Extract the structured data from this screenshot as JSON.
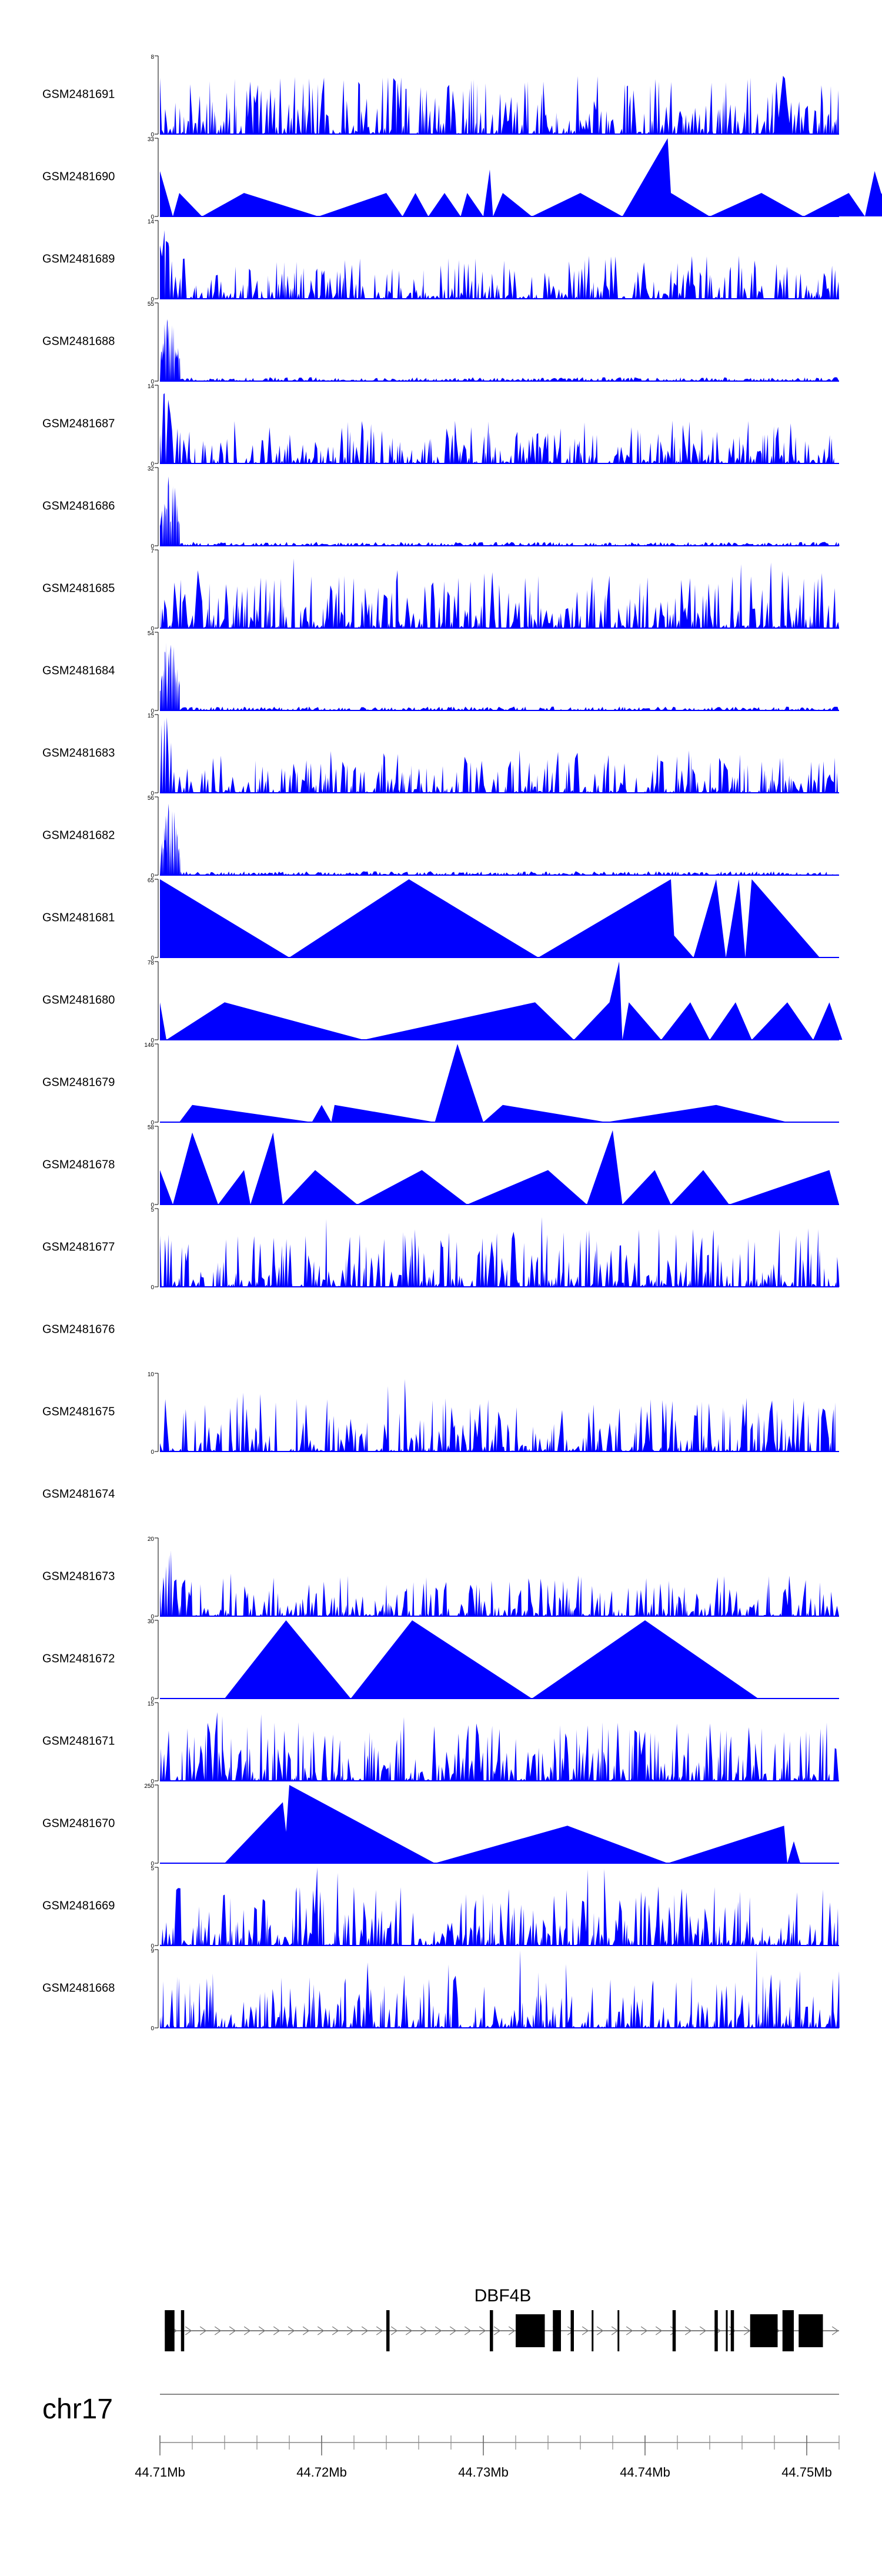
{
  "chart_data": {
    "type": "area",
    "description_source": "genome browser coverage tracks",
    "color": "#0000ff",
    "tracks": [
      {
        "name": "GSM2481691",
        "ymax": "8",
        "ymin": "0",
        "profile": "dense"
      },
      {
        "name": "GSM2481690",
        "ymax": "33",
        "ymin": "0",
        "profile": "sparse",
        "peaks": [
          [
            44.71,
            0.58
          ],
          [
            44.7108,
            0.0
          ],
          [
            44.7112,
            0.3
          ],
          [
            44.7126,
            0.0
          ],
          [
            44.7152,
            0.3
          ],
          [
            44.7198,
            0.0
          ],
          [
            44.724,
            0.3
          ],
          [
            44.725,
            0.0
          ],
          [
            44.7258,
            0.3
          ],
          [
            44.7266,
            0.0
          ],
          [
            44.7276,
            0.3
          ],
          [
            44.7286,
            0.0
          ],
          [
            44.729,
            0.3
          ],
          [
            44.73,
            0.0
          ],
          [
            44.7304,
            0.6
          ],
          [
            44.7306,
            0.0
          ],
          [
            44.7312,
            0.3
          ],
          [
            44.733,
            0.0
          ],
          [
            44.736,
            0.3
          ],
          [
            44.7386,
            0.0
          ],
          [
            44.7414,
            1.0
          ],
          [
            44.7416,
            0.3
          ],
          [
            44.744,
            0.0
          ],
          [
            44.7472,
            0.3
          ],
          [
            44.7498,
            0.0
          ],
          [
            44.7526,
            0.3
          ],
          [
            44.7536,
            0.0
          ],
          [
            44.7542,
            0.58
          ],
          [
            44.7546,
            0.3
          ],
          [
            44.7556,
            0.0
          ],
          [
            44.7562,
            0.58
          ],
          [
            44.7568,
            0.0
          ]
        ]
      },
      {
        "name": "GSM2481689",
        "ymax": "14",
        "ymin": "0",
        "profile": "dense-early"
      },
      {
        "name": "GSM2481688",
        "ymax": "55",
        "ymin": "0",
        "profile": "early-spike"
      },
      {
        "name": "GSM2481687",
        "ymax": "14",
        "ymin": "0",
        "profile": "dense-early"
      },
      {
        "name": "GSM2481686",
        "ymax": "32",
        "ymin": "0",
        "profile": "early-spike"
      },
      {
        "name": "GSM2481685",
        "ymax": "7",
        "ymin": "0",
        "profile": "dense"
      },
      {
        "name": "GSM2481684",
        "ymax": "54",
        "ymin": "0",
        "profile": "early-spike"
      },
      {
        "name": "GSM2481683",
        "ymax": "15",
        "ymin": "0",
        "profile": "dense-early"
      },
      {
        "name": "GSM2481682",
        "ymax": "56",
        "ymin": "0",
        "profile": "early-spike"
      },
      {
        "name": "GSM2481681",
        "ymax": "65",
        "ymin": "0",
        "profile": "sparse",
        "peaks": [
          [
            44.71,
            1.0
          ],
          [
            44.718,
            0.0
          ],
          [
            44.7254,
            1.0
          ],
          [
            44.7334,
            0.0
          ],
          [
            44.7416,
            1.0
          ],
          [
            44.7418,
            0.28
          ],
          [
            44.743,
            0.0
          ],
          [
            44.7444,
            1.0
          ],
          [
            44.745,
            0.0
          ],
          [
            44.7458,
            1.0
          ],
          [
            44.7462,
            0.0
          ],
          [
            44.7466,
            1.0
          ],
          [
            44.7508,
            0.0
          ]
        ]
      },
      {
        "name": "GSM2481680",
        "ymax": "78",
        "ymin": "0",
        "profile": "sparse",
        "peaks": [
          [
            44.71,
            0.48
          ],
          [
            44.7104,
            0.0
          ],
          [
            44.714,
            0.48
          ],
          [
            44.7226,
            0.0
          ],
          [
            44.7332,
            0.48
          ],
          [
            44.7356,
            0.0
          ],
          [
            44.7378,
            0.48
          ],
          [
            44.7384,
            1.0
          ],
          [
            44.7386,
            0.0
          ],
          [
            44.739,
            0.48
          ],
          [
            44.741,
            0.0
          ],
          [
            44.7428,
            0.48
          ],
          [
            44.744,
            0.0
          ],
          [
            44.7456,
            0.48
          ],
          [
            44.7466,
            0.0
          ],
          [
            44.7488,
            0.48
          ],
          [
            44.7504,
            0.0
          ],
          [
            44.7514,
            0.48
          ],
          [
            44.7522,
            0.0
          ]
        ]
      },
      {
        "name": "GSM2481679",
        "ymax": "146",
        "ymin": "0",
        "profile": "sparse",
        "peaks": [
          [
            44.7112,
            0.0
          ],
          [
            44.712,
            0.22
          ],
          [
            44.7194,
            0.0
          ],
          [
            44.72,
            0.22
          ],
          [
            44.7206,
            0.0
          ],
          [
            44.7208,
            0.22
          ],
          [
            44.727,
            0.0
          ],
          [
            44.7284,
            1.0
          ],
          [
            44.73,
            0.0
          ],
          [
            44.7312,
            0.22
          ],
          [
            44.7376,
            0.0
          ],
          [
            44.7444,
            0.22
          ],
          [
            44.7488,
            0.0
          ]
        ]
      },
      {
        "name": "GSM2481678",
        "ymax": "58",
        "ymin": "0",
        "profile": "sparse",
        "peaks": [
          [
            44.71,
            0.44
          ],
          [
            44.7108,
            0.0
          ],
          [
            44.712,
            0.92
          ],
          [
            44.7136,
            0.0
          ],
          [
            44.7152,
            0.44
          ],
          [
            44.7156,
            0.0
          ],
          [
            44.717,
            0.92
          ],
          [
            44.7176,
            0.0
          ],
          [
            44.7196,
            0.44
          ],
          [
            44.7222,
            0.0
          ],
          [
            44.7262,
            0.44
          ],
          [
            44.729,
            0.0
          ],
          [
            44.734,
            0.44
          ],
          [
            44.7364,
            0.0
          ],
          [
            44.738,
            0.95
          ],
          [
            44.7386,
            0.0
          ],
          [
            44.7406,
            0.44
          ],
          [
            44.7416,
            0.0
          ],
          [
            44.7436,
            0.44
          ],
          [
            44.7452,
            0.0
          ],
          [
            44.7514,
            0.44
          ],
          [
            44.752,
            0.0
          ]
        ]
      },
      {
        "name": "GSM2481677",
        "ymax": "5",
        "ymin": "0",
        "profile": "dense"
      },
      {
        "name": "GSM2481676",
        "ymax": "",
        "ymin": "",
        "profile": "empty"
      },
      {
        "name": "GSM2481675",
        "ymax": "10",
        "ymin": "0",
        "profile": "dense-mid"
      },
      {
        "name": "GSM2481674",
        "ymax": "",
        "ymin": "",
        "profile": "empty"
      },
      {
        "name": "GSM2481673",
        "ymax": "20",
        "ymin": "0",
        "profile": "dense-early"
      },
      {
        "name": "GSM2481672",
        "ymax": "30",
        "ymin": "0",
        "profile": "sparse",
        "peaks": [
          [
            44.714,
            0.0
          ],
          [
            44.7178,
            1.0
          ],
          [
            44.7218,
            0.0
          ],
          [
            44.7256,
            1.0
          ],
          [
            44.733,
            0.0
          ],
          [
            44.74,
            1.0
          ],
          [
            44.747,
            0.0
          ]
        ]
      },
      {
        "name": "GSM2481671",
        "ymax": "15",
        "ymin": "0",
        "profile": "dense"
      },
      {
        "name": "GSM2481670",
        "ymax": "250",
        "ymin": "0",
        "profile": "sparse",
        "peaks": [
          [
            44.714,
            0.0
          ],
          [
            44.7176,
            0.78
          ],
          [
            44.7178,
            0.4
          ],
          [
            44.718,
            1.0
          ],
          [
            44.727,
            0.0
          ],
          [
            44.7352,
            0.48
          ],
          [
            44.7414,
            0.0
          ],
          [
            44.7486,
            0.48
          ],
          [
            44.7488,
            0.0
          ],
          [
            44.7492,
            0.28
          ],
          [
            44.7496,
            0.0
          ]
        ]
      },
      {
        "name": "GSM2481669",
        "ymax": "5",
        "ymin": "0",
        "profile": "dense"
      },
      {
        "name": "GSM2481668",
        "ymax": "9",
        "ymin": "0",
        "profile": "dense"
      }
    ],
    "gene": {
      "name": "DBF4B",
      "start": 44.7103,
      "end": 44.752,
      "exons": [
        [
          44.7103,
          44.7109
        ],
        [
          44.7113,
          44.7115
        ],
        [
          44.724,
          44.7242
        ],
        [
          44.7304,
          44.7306
        ],
        [
          44.732,
          44.7338
        ],
        [
          44.7343,
          44.7348
        ],
        [
          44.7354,
          44.7356
        ],
        [
          44.7367,
          44.7368
        ],
        [
          44.7383,
          44.7384
        ],
        [
          44.7417,
          44.7419
        ],
        [
          44.7443,
          44.7445
        ],
        [
          44.745,
          44.7451
        ],
        [
          44.7453,
          44.7455
        ],
        [
          44.7465,
          44.7482
        ],
        [
          44.7485,
          44.7492
        ],
        [
          44.7495,
          44.751
        ]
      ]
    },
    "chromosome": "chr17",
    "x_axis": {
      "min": 44.71,
      "max": 44.752,
      "ticks": [
        "44.71Mb",
        "44.72Mb",
        "44.73Mb",
        "44.74Mb",
        "44.75Mb"
      ],
      "tick_values": [
        44.71,
        44.72,
        44.73,
        44.74,
        44.75
      ],
      "minor_step": 0.002
    }
  }
}
